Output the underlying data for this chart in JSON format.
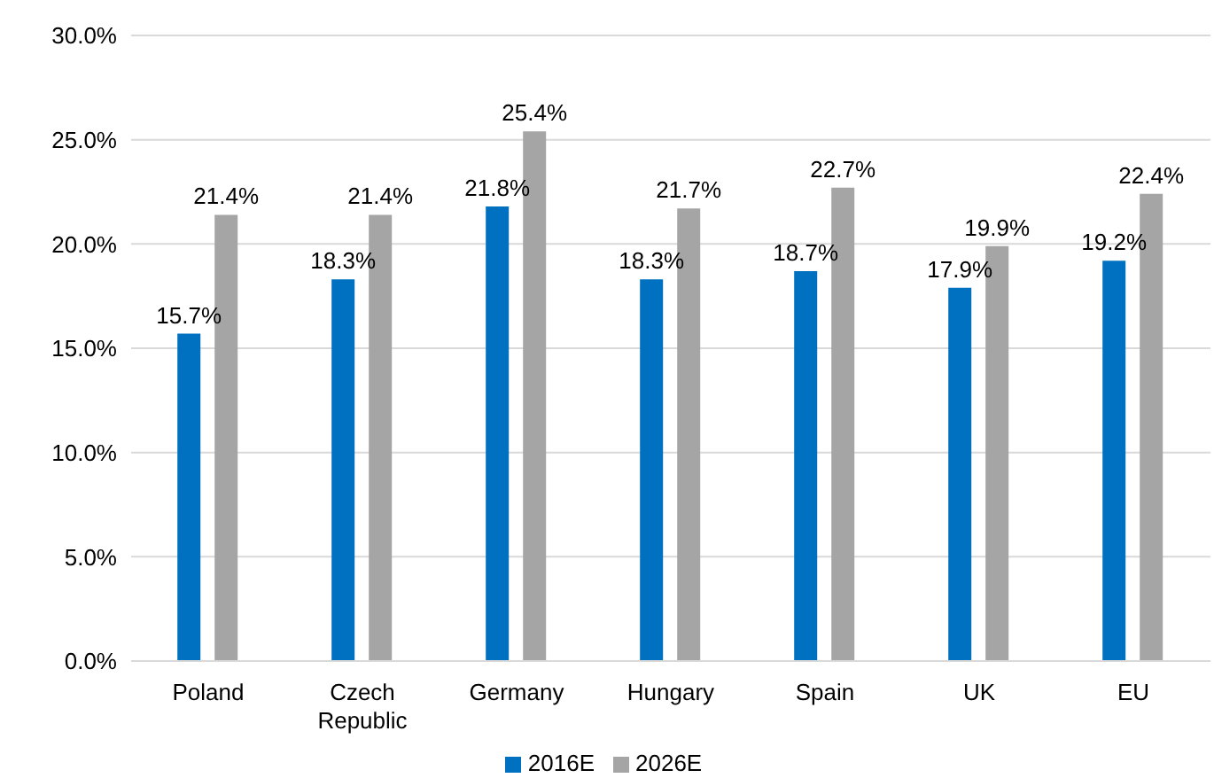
{
  "chart_data": {
    "type": "bar",
    "categories": [
      "Poland",
      "Czech Republic",
      "Germany",
      "Hungary",
      "Spain",
      "UK",
      "EU"
    ],
    "series": [
      {
        "name": "2016E",
        "color": "#0070c0",
        "values": [
          15.7,
          18.3,
          21.8,
          18.3,
          18.7,
          17.9,
          19.2
        ],
        "value_labels": [
          "15.7%",
          "18.3%",
          "21.8%",
          "18.3%",
          "18.7%",
          "17.9%",
          "19.2%"
        ]
      },
      {
        "name": "2026E",
        "color": "#a5a5a5",
        "values": [
          21.4,
          21.4,
          25.4,
          21.7,
          22.7,
          19.9,
          22.4
        ],
        "value_labels": [
          "21.4%",
          "21.4%",
          "25.4%",
          "21.7%",
          "22.7%",
          "19.9%",
          "22.4%"
        ]
      }
    ],
    "ylim": [
      0,
      30
    ],
    "yticks": [
      {
        "value": 0,
        "label": "0.0%"
      },
      {
        "value": 5,
        "label": "5.0%"
      },
      {
        "value": 10,
        "label": "10.0%"
      },
      {
        "value": 15,
        "label": "15.0%"
      },
      {
        "value": 20,
        "label": "20.0%"
      },
      {
        "value": 25,
        "label": "25.0%"
      },
      {
        "value": 30,
        "label": "30.0%"
      }
    ],
    "grid": "y",
    "legend": "bottom"
  }
}
